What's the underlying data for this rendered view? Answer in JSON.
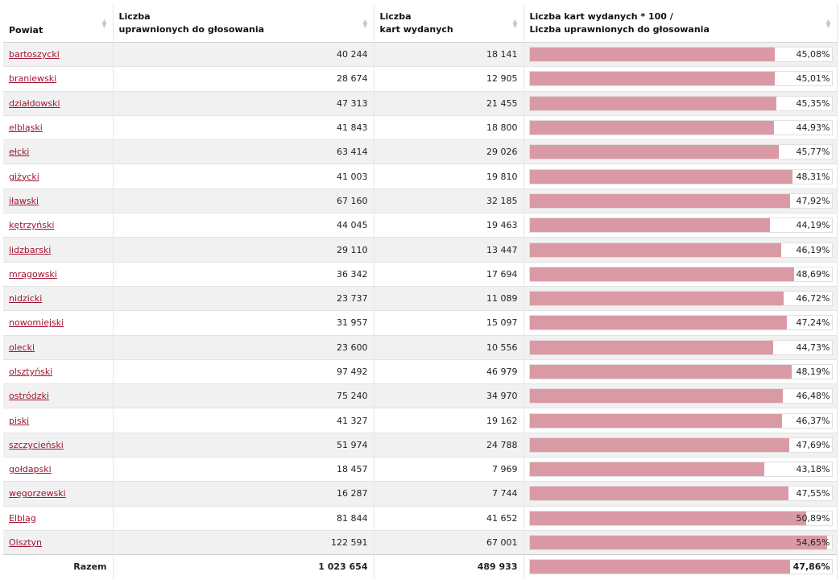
{
  "table": {
    "headers": {
      "col1": "Powiat",
      "col2_line1": "Liczba",
      "col2_line2": "uprawnionych do głosowania",
      "col3_line1": "Liczba",
      "col3_line2": "kart wydanych",
      "col4_line1": "Liczba kart wydanych * 100 /",
      "col4_line2": "Liczba uprawnionych do głosowania"
    },
    "sort_icon": "sort-arrows-icon",
    "bar_color": "#d99aa6",
    "link_color": "#a01530",
    "rows": [
      {
        "powiat": "bartoszycki",
        "uprawnieni": "40 244",
        "karty": "18 141",
        "pct_label": "45,08%",
        "pct": 45.08
      },
      {
        "powiat": "braniewski",
        "uprawnieni": "28 674",
        "karty": "12 905",
        "pct_label": "45,01%",
        "pct": 45.01
      },
      {
        "powiat": "działdowski",
        "uprawnieni": "47 313",
        "karty": "21 455",
        "pct_label": "45,35%",
        "pct": 45.35
      },
      {
        "powiat": "elbląski",
        "uprawnieni": "41 843",
        "karty": "18 800",
        "pct_label": "44,93%",
        "pct": 44.93
      },
      {
        "powiat": "ełcki",
        "uprawnieni": "63 414",
        "karty": "29 026",
        "pct_label": "45,77%",
        "pct": 45.77
      },
      {
        "powiat": "giżycki",
        "uprawnieni": "41 003",
        "karty": "19 810",
        "pct_label": "48,31%",
        "pct": 48.31
      },
      {
        "powiat": "iławski",
        "uprawnieni": "67 160",
        "karty": "32 185",
        "pct_label": "47,92%",
        "pct": 47.92
      },
      {
        "powiat": "kętrzyński",
        "uprawnieni": "44 045",
        "karty": "19 463",
        "pct_label": "44,19%",
        "pct": 44.19
      },
      {
        "powiat": "lidzbarski",
        "uprawnieni": "29 110",
        "karty": "13 447",
        "pct_label": "46,19%",
        "pct": 46.19
      },
      {
        "powiat": "mrągowski",
        "uprawnieni": "36 342",
        "karty": "17 694",
        "pct_label": "48,69%",
        "pct": 48.69
      },
      {
        "powiat": "nidzicki",
        "uprawnieni": "23 737",
        "karty": "11 089",
        "pct_label": "46,72%",
        "pct": 46.72
      },
      {
        "powiat": "nowomiejski",
        "uprawnieni": "31 957",
        "karty": "15 097",
        "pct_label": "47,24%",
        "pct": 47.24
      },
      {
        "powiat": "olecki",
        "uprawnieni": "23 600",
        "karty": "10 556",
        "pct_label": "44,73%",
        "pct": 44.73
      },
      {
        "powiat": "olsztyński",
        "uprawnieni": "97 492",
        "karty": "46 979",
        "pct_label": "48,19%",
        "pct": 48.19
      },
      {
        "powiat": "ostródzki",
        "uprawnieni": "75 240",
        "karty": "34 970",
        "pct_label": "46,48%",
        "pct": 46.48
      },
      {
        "powiat": "piski",
        "uprawnieni": "41 327",
        "karty": "19 162",
        "pct_label": "46,37%",
        "pct": 46.37
      },
      {
        "powiat": "szczycieński",
        "uprawnieni": "51 974",
        "karty": "24 788",
        "pct_label": "47,69%",
        "pct": 47.69
      },
      {
        "powiat": "gołdapski",
        "uprawnieni": "18 457",
        "karty": "7 969",
        "pct_label": "43,18%",
        "pct": 43.18
      },
      {
        "powiat": "węgorzewski",
        "uprawnieni": "16 287",
        "karty": "7 744",
        "pct_label": "47,55%",
        "pct": 47.55
      },
      {
        "powiat": "Elbląg",
        "uprawnieni": "81 844",
        "karty": "41 652",
        "pct_label": "50,89%",
        "pct": 50.89
      },
      {
        "powiat": "Olsztyn",
        "uprawnieni": "122 591",
        "karty": "67 001",
        "pct_label": "54,65%",
        "pct": 54.65
      }
    ],
    "total": {
      "label": "Razem",
      "uprawnieni": "1 023 654",
      "karty": "489 933",
      "pct_label": "47,86%",
      "pct": 47.86
    }
  }
}
